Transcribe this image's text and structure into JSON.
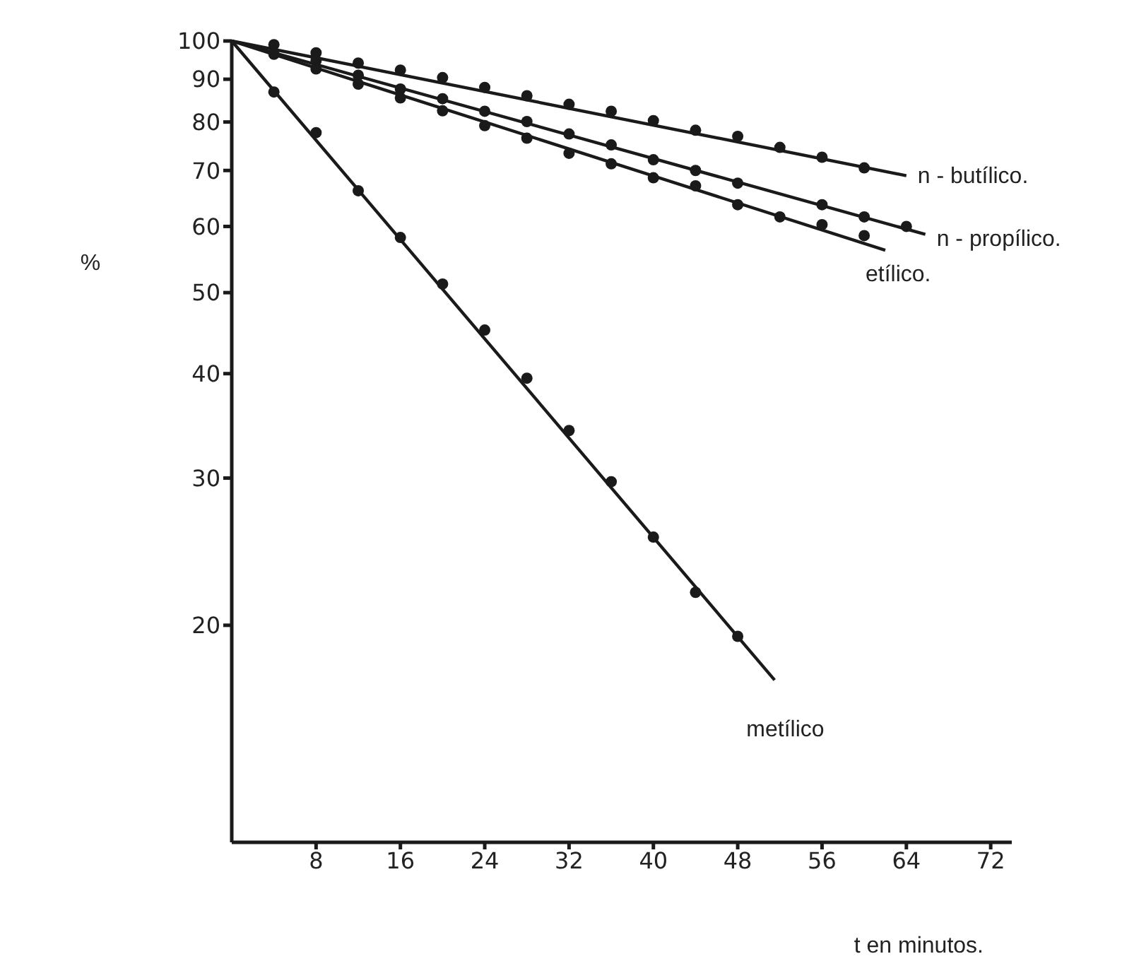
{
  "chart_data": {
    "type": "scatter",
    "xlabel": "t en minutos.",
    "ylabel": "%",
    "log": "y",
    "marker": "circle",
    "xlim": [
      0,
      74
    ],
    "xticks": [
      8,
      16,
      24,
      32,
      40,
      48,
      56,
      64,
      72
    ],
    "ylim": [
      11,
      100
    ],
    "yticks": [
      20,
      30,
      40,
      50,
      60,
      70,
      80,
      90,
      100
    ],
    "series": [
      {
        "type": "line",
        "marker": "none",
        "name": "n - butílico.",
        "color": "#1a1a1a",
        "x": [
          0,
          64
        ],
        "values": [
          100,
          69
        ]
      },
      {
        "type": "line",
        "marker": "none",
        "name": "n - propílico.",
        "color": "#1a1a1a",
        "x": [
          0,
          65.8
        ],
        "values": [
          100,
          58.7
        ]
      },
      {
        "type": "line",
        "marker": "none",
        "name": "etílico.",
        "color": "#1a1a1a",
        "x": [
          0,
          62
        ],
        "values": [
          100,
          56.2
        ]
      },
      {
        "type": "line",
        "marker": "none",
        "name": "metílico",
        "color": "#1a1a1a",
        "x": [
          0,
          51.5
        ],
        "values": [
          100,
          17.2
        ]
      },
      {
        "color": "#1a1a1a",
        "x": [
          4,
          8,
          12,
          16,
          20,
          24,
          28,
          32,
          36,
          40,
          44,
          48,
          52,
          56,
          60
        ],
        "values": [
          99,
          96.8,
          94.1,
          92.3,
          90.4,
          88,
          86,
          84,
          82.4,
          80.3,
          78.2,
          76.9,
          74.6,
          72.6,
          70.5
        ]
      },
      {
        "color": "#1a1a1a",
        "x": [
          8,
          12,
          16,
          20,
          24,
          28,
          32,
          36,
          40,
          44,
          48,
          56,
          60,
          64
        ],
        "values": [
          94.7,
          91,
          87.6,
          85.3,
          82.4,
          80.1,
          77.4,
          75.1,
          72.1,
          70,
          67.6,
          63.7,
          61.6,
          60
        ]
      },
      {
        "color": "#1a1a1a",
        "x": [
          4,
          8,
          12,
          16,
          20,
          24,
          28,
          32,
          36,
          40,
          44,
          48,
          52,
          56,
          60
        ],
        "values": [
          96.4,
          92.6,
          88.8,
          85.5,
          82.5,
          79.2,
          76.5,
          73.4,
          71.3,
          68.6,
          67.1,
          63.7,
          61.6,
          60.3,
          58.5
        ]
      },
      {
        "color": "#1a1a1a",
        "x": [
          4,
          8,
          12,
          16,
          20,
          24,
          28,
          32,
          36,
          40,
          44,
          48
        ],
        "values": [
          86.9,
          77.7,
          66.2,
          58.2,
          51.2,
          45.1,
          39.5,
          34.2,
          29.7,
          25.5,
          21.9,
          19.4
        ]
      }
    ]
  }
}
